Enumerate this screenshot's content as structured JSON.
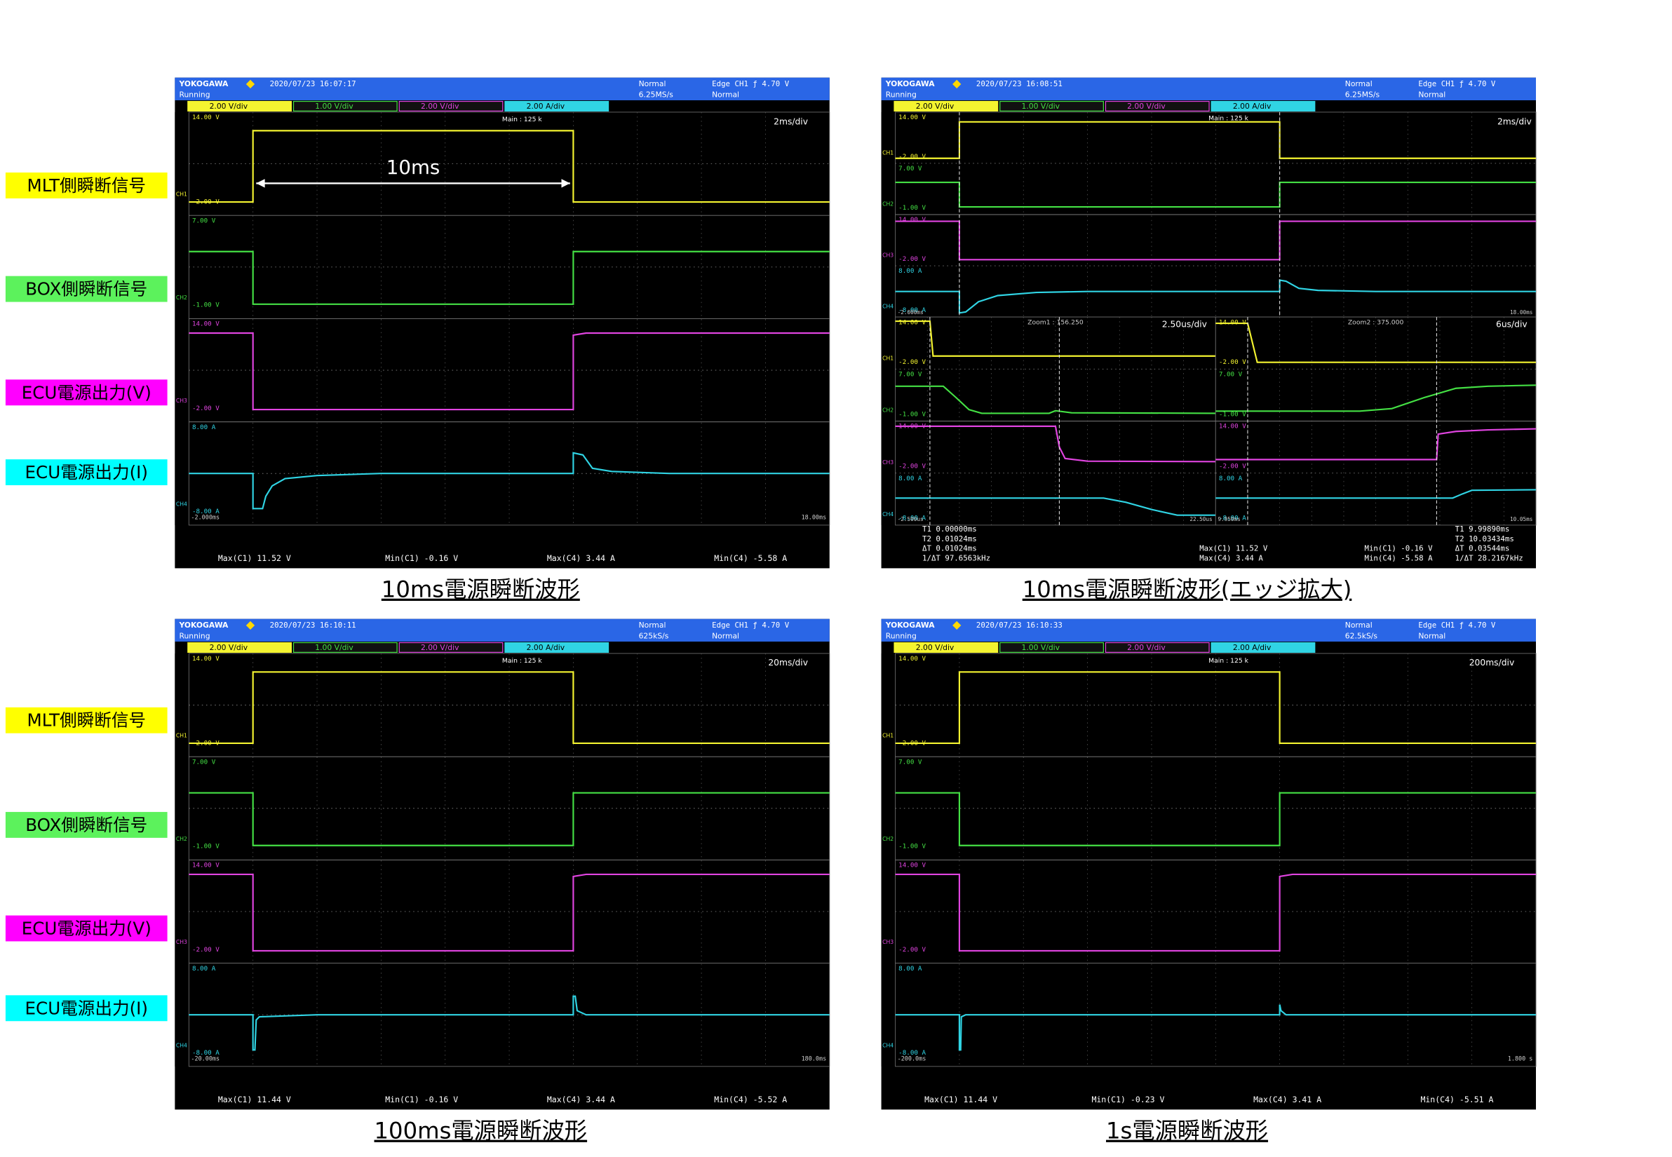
{
  "side_labels_top": [
    "MLT側瞬断信号",
    "BOX側瞬断信号",
    "ECU電源出力(V)",
    "ECU電源出力(I)"
  ],
  "side_labels_bottom": [
    "MLT側瞬断信号",
    "BOX側瞬断信号",
    "ECU電源出力(V)",
    "ECU電源出力(I)"
  ],
  "channel_tags": [
    "CH1",
    "CH2",
    "CH3",
    "CH4"
  ],
  "panels": [
    {
      "header": {
        "brand": "YOKOGAWA",
        "datetime": "2020/07/23 16:07:17",
        "state": "Running",
        "mode": "Normal",
        "sample_rate": "6.25MS/s",
        "trigger": "Edge CH1 ƒ 4.70 V",
        "trigger_mode": "Normal"
      },
      "channels": [
        "2.00 V/div",
        "1.00 V/div",
        "2.00 V/div",
        "2.00 A/div"
      ],
      "time_div": "2ms/div",
      "main": "Main : 125 k",
      "levels": [
        "14.00 V",
        "-2.00 V",
        "7.00 V",
        "-1.00 V",
        "14.00 V",
        "-2.00 V",
        "8.00 A",
        "-8.00 A"
      ],
      "time_start": "-2.000ms",
      "time_end": "18.00ms",
      "measurements": [
        "Max(C1)  11.52 V",
        "Min(C1)  -0.16 V",
        "Max(C4)  3.44 A",
        "Min(C4)  -5.58 A"
      ],
      "annotation": "10ms",
      "caption": "10ms電源瞬断波形"
    },
    {
      "header": {
        "brand": "YOKOGAWA",
        "datetime": "2020/07/23 16:08:51",
        "state": "Running",
        "mode": "Normal",
        "sample_rate": "6.25MS/s",
        "trigger": "Edge CH1 ƒ 4.70 V",
        "trigger_mode": "Normal"
      },
      "channels": [
        "2.00 V/div",
        "1.00 V/div",
        "2.00 V/div",
        "2.00 A/div"
      ],
      "time_div": "2ms/div",
      "main": "Main : 125 k",
      "levels": [
        "14.00 V",
        "-2.00 V",
        "7.00 V",
        "-1.00 V",
        "14.00 V",
        "-2.00 V",
        "8.00 A",
        "-8.00 A"
      ],
      "time_start": "-2.000ms",
      "time_end": "18.00ms",
      "zooms": [
        {
          "title": "Zoom1 : 156.250",
          "time_div": "2.50us/div",
          "levels": [
            "14.00 V",
            "-2.00 V",
            "7.00 V",
            "-1.00 V",
            "14.00 V",
            "-2.00 V",
            "8.00 A",
            "-8.00 A"
          ],
          "time_start": "-2.500us",
          "time_end": "22.50us"
        },
        {
          "title": "Zoom2 : 375.000",
          "time_div": "6us/div",
          "levels": [
            "14.00 V",
            "-2.00 V",
            "7.00 V",
            "-1.00 V",
            "14.00 V",
            "-2.00 V",
            "8.00 A",
            "-8.00 A"
          ],
          "time_start": "9.950ms",
          "time_end": "10.05ms"
        }
      ],
      "cursor_left": [
        "T1  0.00000ms",
        "T2  0.01024ms",
        "ΔT  0.01024ms",
        "1/ΔT  97.6563kHz"
      ],
      "measurements": [
        "Max(C1)  11.52 V",
        "Max(C4)  3.44 A",
        "Min(C1)  -0.16 V",
        "Min(C4)  -5.58 A"
      ],
      "cursor_right": [
        "T1  9.99890ms",
        "T2  10.03434ms",
        "ΔT  0.03544ms",
        "1/ΔT  28.2167kHz"
      ],
      "caption": "10ms電源瞬断波形(エッジ拡大)"
    },
    {
      "header": {
        "brand": "YOKOGAWA",
        "datetime": "2020/07/23 16:10:11",
        "state": "Running",
        "mode": "Normal",
        "sample_rate": "625kS/s",
        "trigger": "Edge CH1 ƒ 4.70 V",
        "trigger_mode": "Normal"
      },
      "channels": [
        "2.00 V/div",
        "1.00 V/div",
        "2.00 V/div",
        "2.00 A/div"
      ],
      "time_div": "20ms/div",
      "main": "Main : 125 k",
      "levels": [
        "14.00 V",
        "-2.00 V",
        "7.00 V",
        "-1.00 V",
        "14.00 V",
        "-2.00 V",
        "8.00 A",
        "-8.00 A"
      ],
      "time_start": "-20.00ms",
      "time_end": "180.0ms",
      "measurements": [
        "Max(C1)  11.44 V",
        "Min(C1)  -0.16 V",
        "Max(C4)  3.44 A",
        "Min(C4)  -5.52 A"
      ],
      "caption": "100ms電源瞬断波形"
    },
    {
      "header": {
        "brand": "YOKOGAWA",
        "datetime": "2020/07/23 16:10:33",
        "state": "Running",
        "mode": "Normal",
        "sample_rate": "62.5kS/s",
        "trigger": "Edge CH1 ƒ 4.70 V",
        "trigger_mode": "Normal"
      },
      "channels": [
        "2.00 V/div",
        "1.00 V/div",
        "2.00 V/div",
        "2.00 A/div"
      ],
      "time_div": "200ms/div",
      "main": "Main : 125 k",
      "levels": [
        "14.00 V",
        "-2.00 V",
        "7.00 V",
        "-1.00 V",
        "14.00 V",
        "-2.00 V",
        "8.00 A",
        "-8.00 A"
      ],
      "time_start": "-200.0ms",
      "time_end": "1.800 s",
      "measurements": [
        "Max(C1)  11.44 V",
        "Min(C1)  -0.23 V",
        "Max(C4)  3.41 A",
        "Min(C4)  -5.51 A"
      ],
      "caption": "1s電源瞬断波形"
    }
  ]
}
